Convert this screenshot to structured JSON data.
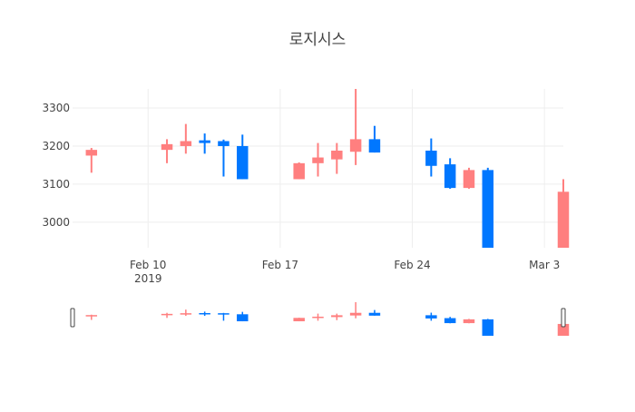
{
  "chart_data": {
    "type": "candlestick",
    "title": "로지시스",
    "xlabel": "",
    "ylabel": "",
    "grid": true,
    "legend": "none",
    "x_range": [
      "2019-02-06",
      "2019-03-04"
    ],
    "ylim": [
      2933,
      3350
    ],
    "yticks": [
      3000,
      3100,
      3200,
      3300
    ],
    "ytick_labels": [
      "3000",
      "3100",
      "3200",
      "3300"
    ],
    "xticks": [
      {
        "date": "2019-02-10",
        "label": "Feb 10",
        "sublabel": "2019"
      },
      {
        "date": "2019-02-17",
        "label": "Feb 17",
        "sublabel": ""
      },
      {
        "date": "2019-02-24",
        "label": "Feb 24",
        "sublabel": ""
      },
      {
        "date": "2019-03-03",
        "label": "Mar 3",
        "sublabel": ""
      }
    ],
    "colors": {
      "increasing": "#ff7f7f",
      "decreasing": "#0077ff"
    },
    "candles": [
      {
        "date": "2019-02-07",
        "open": 3175,
        "high": 3195,
        "low": 3130,
        "close": 3190
      },
      {
        "date": "2019-02-11",
        "open": 3190,
        "high": 3218,
        "low": 3155,
        "close": 3205
      },
      {
        "date": "2019-02-12",
        "open": 3200,
        "high": 3258,
        "low": 3180,
        "close": 3213
      },
      {
        "date": "2019-02-13",
        "open": 3215,
        "high": 3233,
        "low": 3180,
        "close": 3208
      },
      {
        "date": "2019-02-14",
        "open": 3213,
        "high": 3217,
        "low": 3120,
        "close": 3200
      },
      {
        "date": "2019-02-15",
        "open": 3200,
        "high": 3230,
        "low": 3113,
        "close": 3113
      },
      {
        "date": "2019-02-18",
        "open": 3113,
        "high": 3157,
        "low": 3113,
        "close": 3155
      },
      {
        "date": "2019-02-19",
        "open": 3155,
        "high": 3208,
        "low": 3120,
        "close": 3170
      },
      {
        "date": "2019-02-20",
        "open": 3165,
        "high": 3208,
        "low": 3127,
        "close": 3188
      },
      {
        "date": "2019-02-21",
        "open": 3185,
        "high": 3350,
        "low": 3150,
        "close": 3218
      },
      {
        "date": "2019-02-22",
        "open": 3218,
        "high": 3253,
        "low": 3183,
        "close": 3183
      },
      {
        "date": "2019-02-25",
        "open": 3188,
        "high": 3220,
        "low": 3120,
        "close": 3148
      },
      {
        "date": "2019-02-26",
        "open": 3152,
        "high": 3168,
        "low": 3088,
        "close": 3090
      },
      {
        "date": "2019-02-27",
        "open": 3090,
        "high": 3143,
        "low": 3088,
        "close": 3137
      },
      {
        "date": "2019-02-28",
        "open": 3137,
        "high": 3143,
        "low": 2933,
        "close": 2933
      },
      {
        "date": "2019-03-04",
        "open": 2933,
        "high": 3113,
        "low": 2933,
        "close": 3080
      }
    ],
    "rangeslider": true
  }
}
